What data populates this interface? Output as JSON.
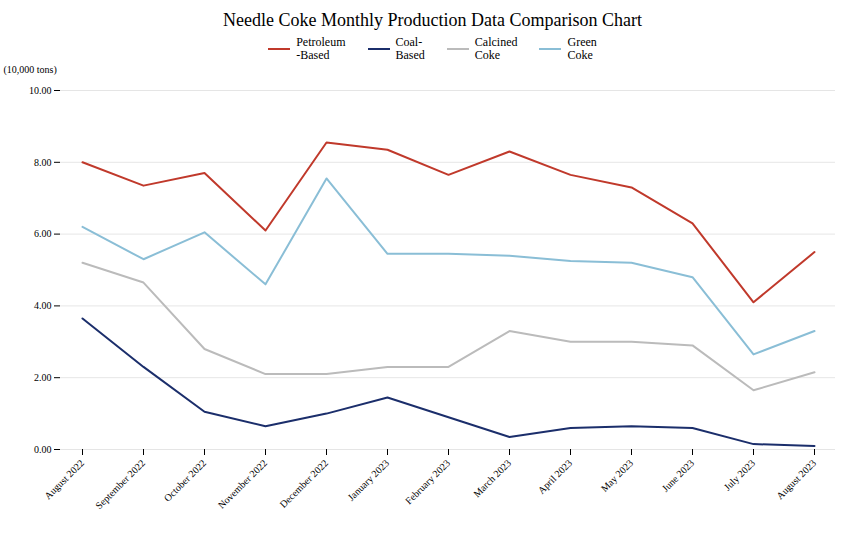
{
  "chart_data": {
    "type": "line",
    "title": "Needle Coke Monthly Production Data Comparison Chart",
    "y_label": "(10,000 tons)",
    "categories": [
      "August 2022",
      "September 2022",
      "October 2022",
      "November 2022",
      "December 2022",
      "January 2023",
      "February 2023",
      "March 2023",
      "April 2023",
      "May 2023",
      "June 2023",
      "July 2023",
      "August 2023"
    ],
    "series": [
      {
        "name": "Petroleum\n-Based",
        "color": "#C0392B",
        "values": [
          8.0,
          7.35,
          7.7,
          6.1,
          8.55,
          8.35,
          7.65,
          8.3,
          7.65,
          7.3,
          6.3,
          4.1,
          5.5
        ]
      },
      {
        "name": "Coal-\nBased",
        "color": "#1B2E6B",
        "values": [
          3.65,
          2.3,
          1.05,
          0.65,
          1.0,
          1.45,
          0.9,
          0.35,
          0.6,
          0.65,
          0.6,
          0.15,
          0.1
        ]
      },
      {
        "name": "Calcined\nCoke",
        "color": "#BBBBBB",
        "values": [
          5.2,
          4.65,
          2.8,
          2.1,
          2.1,
          2.3,
          2.3,
          3.3,
          3.0,
          3.0,
          2.9,
          1.65,
          2.15
        ]
      },
      {
        "name": "Green\nCoke",
        "color": "#8ABED6",
        "values": [
          6.2,
          5.3,
          6.05,
          4.6,
          7.55,
          5.45,
          5.45,
          5.4,
          5.25,
          5.2,
          4.8,
          2.65,
          3.3
        ]
      }
    ],
    "ylim": [
      0.0,
      10.0
    ],
    "yticks": [
      {
        "value": 0,
        "label": "0.00"
      },
      {
        "value": 2,
        "label": "2.00"
      },
      {
        "value": 4,
        "label": "4.00"
      },
      {
        "value": 6,
        "label": "6.00"
      },
      {
        "value": 8,
        "label": "8.00"
      },
      {
        "value": 10,
        "label": "10.00"
      }
    ],
    "grid": true,
    "legend": "top"
  }
}
